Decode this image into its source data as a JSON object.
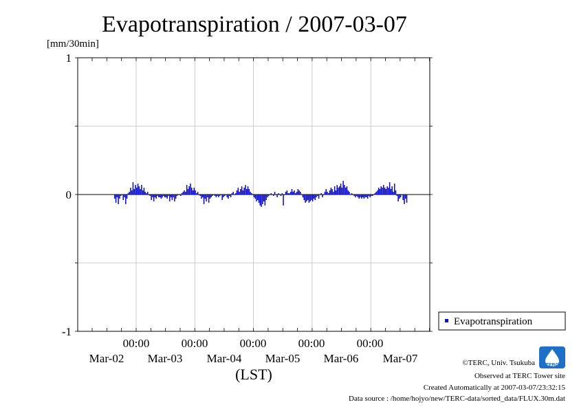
{
  "title": "Evapotranspiration / 2007-03-07",
  "colors": {
    "series": "#1010c8",
    "grid": "#c0c0c0",
    "axis": "#000000"
  },
  "chart_data": {
    "type": "bar",
    "ylabel": "[mm/30min]",
    "xlabel": "(LST)",
    "ylim": [
      -1,
      1
    ],
    "yticks": [
      "1",
      "0",
      "-1"
    ],
    "xticks": [
      {
        "time": "00:00",
        "date": "Mar-02"
      },
      {
        "time": "00:00",
        "date": "Mar-03"
      },
      {
        "time": "00:00",
        "date": "Mar-04"
      },
      {
        "time": "00:00",
        "date": "Mar-05"
      },
      {
        "time": "00:00",
        "date": "Mar-06"
      },
      {
        "time": "00:00",
        "date": "Mar-07"
      }
    ],
    "x_start": "2007-03-01 06:00",
    "interval": "30min",
    "grid": true,
    "legend": "right",
    "series": [
      {
        "name": "Evapotranspiration",
        "values": [
          -0.03,
          -0.06,
          -0.02,
          -0.07,
          -0.03,
          -0.01,
          0.0,
          -0.04,
          -0.02,
          -0.07,
          -0.03,
          0.01,
          0.02,
          0.05,
          0.03,
          0.09,
          0.04,
          0.07,
          0.05,
          0.08,
          0.06,
          0.04,
          0.07,
          0.03,
          0.05,
          0.02,
          0.01,
          0.02,
          0.0,
          -0.01,
          -0.04,
          -0.02,
          -0.05,
          -0.02,
          -0.03,
          -0.01,
          -0.02,
          -0.02,
          -0.03,
          -0.02,
          -0.01,
          -0.02,
          -0.02,
          -0.03,
          -0.01,
          -0.05,
          -0.02,
          -0.04,
          -0.02,
          -0.05,
          -0.03,
          -0.01,
          0.0,
          0.0,
          -0.01,
          0.01,
          0.02,
          0.03,
          0.02,
          0.07,
          0.04,
          0.06,
          0.08,
          0.05,
          0.03,
          0.05,
          0.03,
          0.01,
          0.02,
          0.0,
          -0.01,
          -0.03,
          -0.02,
          -0.07,
          -0.03,
          -0.05,
          -0.02,
          -0.06,
          -0.03,
          -0.02,
          -0.01,
          0.0,
          -0.01,
          -0.02,
          -0.01,
          -0.02,
          -0.01,
          0.0,
          -0.04,
          -0.02,
          -0.01,
          0.0,
          -0.02,
          -0.03,
          -0.01,
          -0.02,
          0.01,
          0.02,
          0.0,
          0.01,
          0.03,
          0.05,
          0.02,
          0.04,
          0.06,
          0.03,
          0.05,
          0.07,
          0.04,
          0.06,
          0.04,
          0.02,
          0.01,
          0.0,
          -0.02,
          -0.03,
          -0.05,
          -0.04,
          -0.06,
          -0.08,
          -0.09,
          -0.07,
          -0.05,
          -0.08,
          -0.04,
          -0.02,
          -0.01,
          0.0,
          0.01,
          0.0,
          -0.01,
          0.02,
          0.0,
          -0.02,
          0.01,
          0.0,
          -0.01,
          0.01,
          -0.08,
          0.0,
          0.02,
          0.03,
          0.01,
          0.01,
          0.02,
          0.04,
          0.02,
          0.03,
          0.01,
          0.02,
          0.04,
          0.03,
          0.02,
          0.0,
          -0.02,
          -0.04,
          -0.06,
          -0.05,
          -0.04,
          -0.06,
          -0.05,
          -0.04,
          -0.05,
          -0.03,
          -0.04,
          -0.02,
          -0.01,
          -0.03,
          0.0,
          0.01,
          -0.02,
          0.0,
          0.02,
          0.04,
          0.02,
          0.01,
          0.03,
          0.05,
          0.04,
          0.02,
          0.06,
          0.03,
          0.07,
          0.05,
          0.06,
          0.08,
          0.05,
          0.1,
          0.07,
          0.05,
          0.06,
          0.03,
          0.02,
          0.0,
          0.01,
          0.0,
          -0.01,
          -0.02,
          -0.01,
          -0.02,
          -0.03,
          -0.02,
          -0.03,
          -0.02,
          -0.03,
          -0.02,
          -0.02,
          -0.03,
          -0.01,
          -0.02,
          -0.01,
          -0.01,
          0.0,
          0.01,
          0.02,
          0.03,
          0.05,
          0.04,
          0.06,
          0.05,
          0.07,
          0.05,
          0.04,
          0.06,
          0.05,
          0.09,
          0.04,
          0.06,
          0.02,
          0.08,
          0.03,
          -0.01,
          -0.05,
          -0.03,
          -0.02,
          0.0,
          -0.04,
          -0.07,
          -0.03,
          -0.06
        ]
      }
    ]
  },
  "footer": {
    "copyright": "©TERC, Univ. Tsukuba",
    "site": "Observed at TERC Tower site",
    "created": "Created Automatically at 2007-03-07/23:32:15",
    "source": "Data source : /home/hojyo/new/TERC-data/sorted_data/FLUX.30m.dat",
    "logo_text": "TERC"
  }
}
